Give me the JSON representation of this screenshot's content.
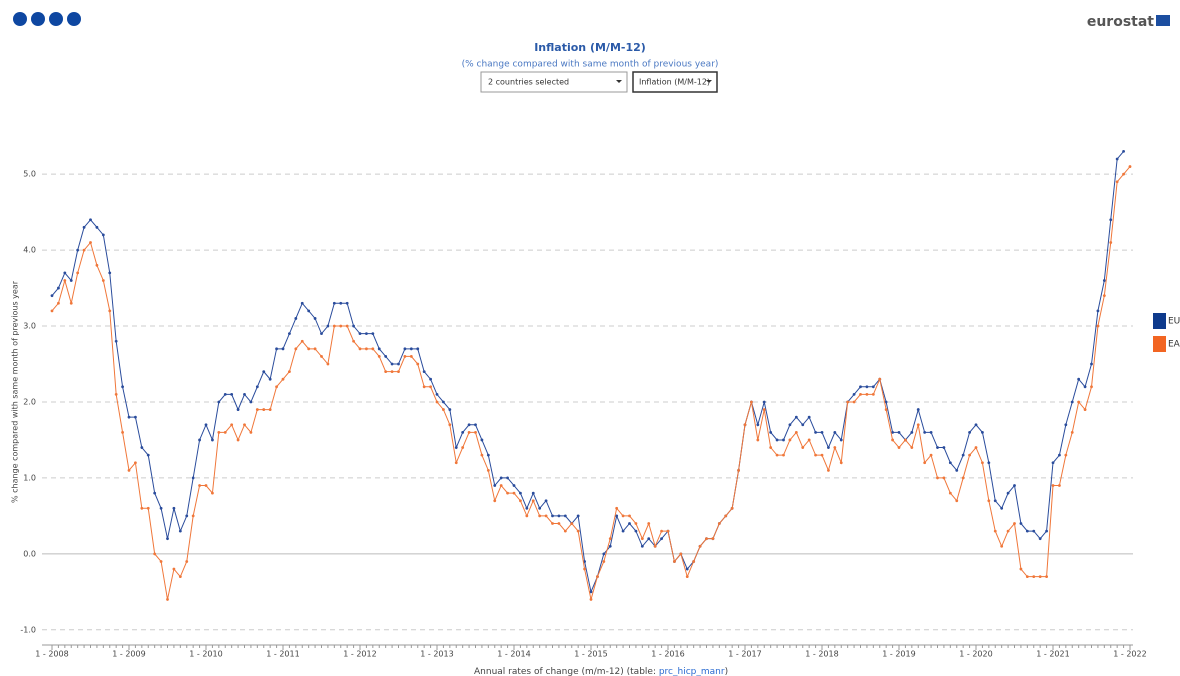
{
  "ui": {
    "logo": "eurostat",
    "country_select": "2 countries selected",
    "indicator_select": "Inflation (M/M-12)",
    "footer": {
      "prefix": "Annual rates of change (m/m-12) (table: ",
      "link": "prc_hicp_manr",
      "suffix": ")"
    }
  },
  "chart_data": {
    "type": "line",
    "title": "Inflation (M/M-12)",
    "subtitle": "(% change compared with same month of previous year)",
    "y_label": "% change compared with same month of previous year",
    "categories": [
      "1 - 2008",
      null,
      null,
      null,
      null,
      null,
      null,
      null,
      null,
      null,
      null,
      null,
      "1 - 2009",
      null,
      null,
      null,
      null,
      null,
      null,
      null,
      null,
      null,
      null,
      null,
      "1 - 2010",
      null,
      null,
      null,
      null,
      null,
      null,
      null,
      null,
      null,
      null,
      null,
      "1 - 2011",
      null,
      null,
      null,
      null,
      null,
      null,
      null,
      null,
      null,
      null,
      null,
      "1 - 2012",
      null,
      null,
      null,
      null,
      null,
      null,
      null,
      null,
      null,
      null,
      null,
      "1 - 2013",
      null,
      null,
      null,
      null,
      null,
      null,
      null,
      null,
      null,
      null,
      null,
      "1 - 2014",
      null,
      null,
      null,
      null,
      null,
      null,
      null,
      null,
      null,
      null,
      null,
      "1 - 2015",
      null,
      null,
      null,
      null,
      null,
      null,
      null,
      null,
      null,
      null,
      null,
      "1 - 2016",
      null,
      null,
      null,
      null,
      null,
      null,
      null,
      null,
      null,
      null,
      null,
      "1 - 2017",
      null,
      null,
      null,
      null,
      null,
      null,
      null,
      null,
      null,
      null,
      null,
      "1 - 2018",
      null,
      null,
      null,
      null,
      null,
      null,
      null,
      null,
      null,
      null,
      null,
      "1 - 2019",
      null,
      null,
      null,
      null,
      null,
      null,
      null,
      null,
      null,
      null,
      null,
      "1 - 2020",
      null,
      null,
      null,
      null,
      null,
      null,
      null,
      null,
      null,
      null,
      null,
      "1 - 2021",
      null,
      null,
      null,
      null,
      null,
      null,
      null,
      null,
      null,
      null,
      null,
      "1 - 2022"
    ],
    "series": [
      {
        "name": "EU",
        "color": "#2a4c9c",
        "legend_color": "#0e3a8c",
        "values": [
          3.4,
          3.5,
          3.7,
          3.6,
          4.0,
          4.3,
          4.4,
          4.3,
          4.2,
          3.7,
          2.8,
          2.2,
          1.8,
          1.8,
          1.4,
          1.3,
          0.8,
          0.6,
          0.2,
          0.6,
          0.3,
          0.5,
          1.0,
          1.5,
          1.7,
          1.5,
          2.0,
          2.1,
          2.1,
          1.9,
          2.1,
          2.0,
          2.2,
          2.4,
          2.3,
          2.7,
          2.7,
          2.9,
          3.1,
          3.3,
          3.2,
          3.1,
          2.9,
          3.0,
          3.3,
          3.3,
          3.3,
          3.0,
          2.9,
          2.9,
          2.9,
          2.7,
          2.6,
          2.5,
          2.5,
          2.7,
          2.7,
          2.7,
          2.4,
          2.3,
          2.1,
          2.0,
          1.9,
          1.4,
          1.6,
          1.7,
          1.7,
          1.5,
          1.3,
          0.9,
          1.0,
          1.0,
          0.9,
          0.8,
          0.6,
          0.8,
          0.6,
          0.7,
          0.5,
          0.5,
          0.5,
          0.4,
          0.5,
          -0.1,
          -0.5,
          -0.3,
          0.0,
          0.1,
          0.5,
          0.3,
          0.4,
          0.3,
          0.1,
          0.2,
          0.1,
          0.2,
          0.3,
          -0.1,
          0.0,
          -0.2,
          -0.1,
          0.1,
          0.2,
          0.2,
          0.4,
          0.5,
          0.6,
          1.1,
          1.7,
          2.0,
          1.7,
          2.0,
          1.6,
          1.5,
          1.5,
          1.7,
          1.8,
          1.7,
          1.8,
          1.6,
          1.6,
          1.4,
          1.6,
          1.5,
          2.0,
          2.1,
          2.2,
          2.2,
          2.2,
          2.3,
          2.0,
          1.6,
          1.6,
          1.5,
          1.6,
          1.9,
          1.6,
          1.6,
          1.4,
          1.4,
          1.2,
          1.1,
          1.3,
          1.6,
          1.7,
          1.6,
          1.2,
          0.7,
          0.6,
          0.8,
          0.9,
          0.4,
          0.3,
          0.3,
          0.2,
          0.3,
          1.2,
          1.3,
          1.7,
          2.0,
          2.3,
          2.2,
          2.5,
          3.2,
          3.6,
          4.4,
          5.2,
          5.3,
          null
        ]
      },
      {
        "name": "EA",
        "color": "#f0773a",
        "legend_color": "#f26522",
        "values": [
          3.2,
          3.3,
          3.6,
          3.3,
          3.7,
          4.0,
          4.1,
          3.8,
          3.6,
          3.2,
          2.1,
          1.6,
          1.1,
          1.2,
          0.6,
          0.6,
          0.0,
          -0.1,
          -0.6,
          -0.2,
          -0.3,
          -0.1,
          0.5,
          0.9,
          0.9,
          0.8,
          1.6,
          1.6,
          1.7,
          1.5,
          1.7,
          1.6,
          1.9,
          1.9,
          1.9,
          2.2,
          2.3,
          2.4,
          2.7,
          2.8,
          2.7,
          2.7,
          2.6,
          2.5,
          3.0,
          3.0,
          3.0,
          2.8,
          2.7,
          2.7,
          2.7,
          2.6,
          2.4,
          2.4,
          2.4,
          2.6,
          2.6,
          2.5,
          2.2,
          2.2,
          2.0,
          1.9,
          1.7,
          1.2,
          1.4,
          1.6,
          1.6,
          1.3,
          1.1,
          0.7,
          0.9,
          0.8,
          0.8,
          0.7,
          0.5,
          0.7,
          0.5,
          0.5,
          0.4,
          0.4,
          0.3,
          0.4,
          0.3,
          -0.2,
          -0.6,
          -0.3,
          -0.1,
          0.2,
          0.6,
          0.5,
          0.5,
          0.4,
          0.2,
          0.4,
          0.1,
          0.3,
          0.3,
          -0.1,
          0.0,
          -0.3,
          -0.1,
          0.1,
          0.2,
          0.2,
          0.4,
          0.5,
          0.6,
          1.1,
          1.7,
          2.0,
          1.5,
          1.9,
          1.4,
          1.3,
          1.3,
          1.5,
          1.6,
          1.4,
          1.5,
          1.3,
          1.3,
          1.1,
          1.4,
          1.2,
          2.0,
          2.0,
          2.1,
          2.1,
          2.1,
          2.3,
          1.9,
          1.5,
          1.4,
          1.5,
          1.4,
          1.7,
          1.2,
          1.3,
          1.0,
          1.0,
          0.8,
          0.7,
          1.0,
          1.3,
          1.4,
          1.2,
          0.7,
          0.3,
          0.1,
          0.3,
          0.4,
          -0.2,
          -0.3,
          -0.3,
          -0.3,
          -0.3,
          0.9,
          0.9,
          1.3,
          1.6,
          2.0,
          1.9,
          2.2,
          3.0,
          3.4,
          4.1,
          4.9,
          5.0,
          5.1
        ]
      }
    ],
    "ylim": [
      -1.2,
      5.45
    ],
    "yticks": [
      {
        "value": -1,
        "label": "-1.0"
      },
      {
        "value": 0,
        "label": "0.0"
      },
      {
        "value": 1,
        "label": "1.0"
      },
      {
        "value": 2,
        "label": "2.0"
      },
      {
        "value": 3,
        "label": "3.0"
      },
      {
        "value": 4,
        "label": "4.0"
      },
      {
        "value": 5,
        "label": "5.0"
      }
    ],
    "grid": true,
    "legend": "right"
  }
}
